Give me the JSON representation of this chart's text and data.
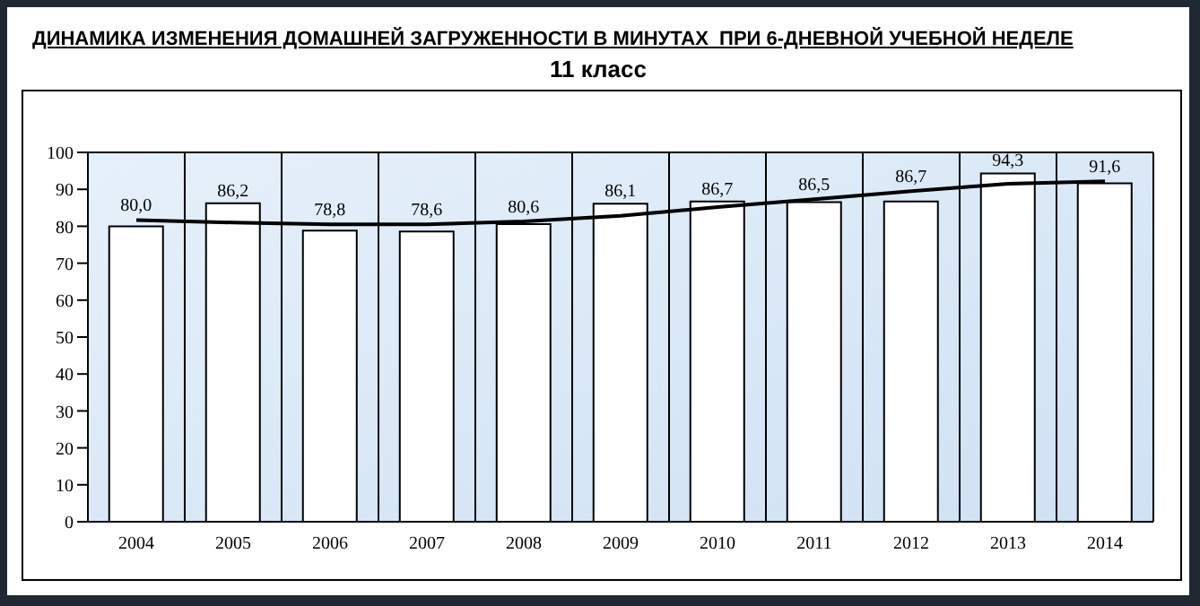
{
  "chart_data": {
    "type": "bar",
    "title": "ДИНАМИКА ИЗМЕНЕНИЯ ДОМАШНЕЙ ЗАГРУЖЕННОСТИ В МИНУТАХ  ПРИ 6-ДНЕВНОЙ УЧЕБНОЙ НЕДЕЛЕ",
    "subtitle": "11 класс",
    "categories": [
      "2004",
      "2005",
      "2006",
      "2007",
      "2008",
      "2009",
      "2010",
      "2011",
      "2012",
      "2013",
      "2014"
    ],
    "series": [
      {
        "color": "#ffffff",
        "values": [
          80.0,
          86.2,
          78.8,
          78.6,
          80.6,
          86.1,
          86.7,
          86.5,
          86.7,
          94.3,
          91.6
        ],
        "value_labels": [
          "80,0",
          "86,2",
          "78,8",
          "78,6",
          "80,6",
          "86,1",
          "86,7",
          "86,5",
          "86,7",
          "94,3",
          "91,6"
        ]
      },
      {
        "type": "line",
        "color": "#000000",
        "values": [
          81.7,
          81.0,
          80.5,
          80.5,
          81.3,
          82.8,
          85.2,
          87.3,
          89.5,
          91.5,
          92.2
        ]
      }
    ],
    "ylim": [
      0,
      100
    ],
    "yticks": [
      0,
      10,
      20,
      30,
      40,
      50,
      60,
      70,
      80,
      90,
      100
    ],
    "grid": true,
    "legend": false,
    "marker": "none",
    "line_style": "solid"
  }
}
